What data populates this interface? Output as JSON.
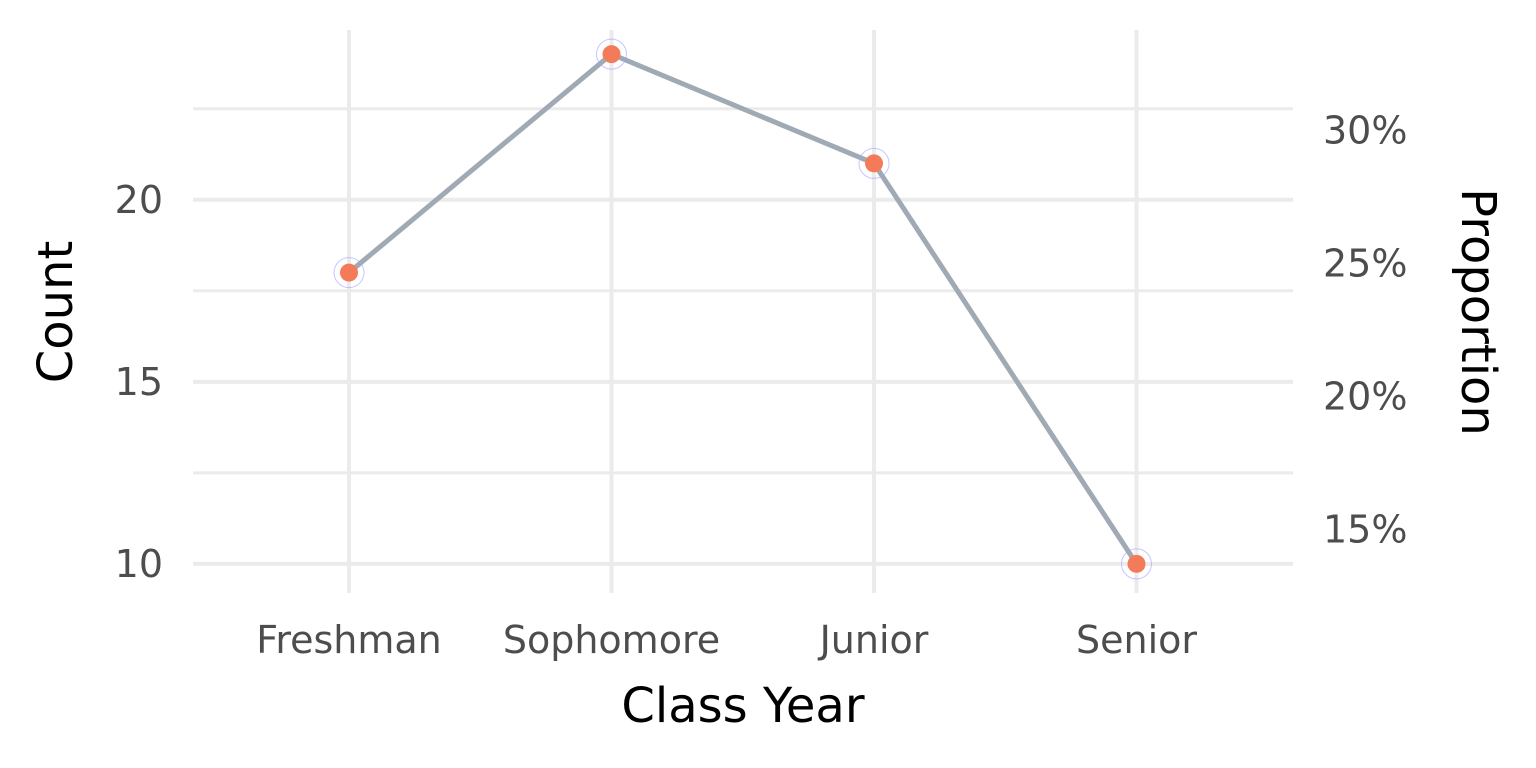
{
  "chart_data": {
    "type": "line",
    "categories": [
      "Freshman",
      "Sophomore",
      "Junior",
      "Senior"
    ],
    "series": [
      {
        "values": [
          18,
          24,
          21,
          10
        ]
      }
    ],
    "xlabel": "Class Year",
    "ylabel": "Count",
    "ylabel_secondary": "Proportion",
    "ylim": [
      9.2,
      24.8
    ],
    "yticks": [
      10,
      15,
      20
    ],
    "ytick_labels": [
      "10",
      "15",
      "20"
    ],
    "secondary_axis": {
      "ticks": [
        0.15,
        0.2,
        0.25,
        0.3
      ],
      "tick_labels": [
        "15%",
        "20%",
        "25%",
        "30%"
      ],
      "total": 73
    },
    "grid": true,
    "colors": {
      "line": "#a0aab4",
      "point": "#f47b5a",
      "point_ring": "#a0a0ff"
    }
  }
}
